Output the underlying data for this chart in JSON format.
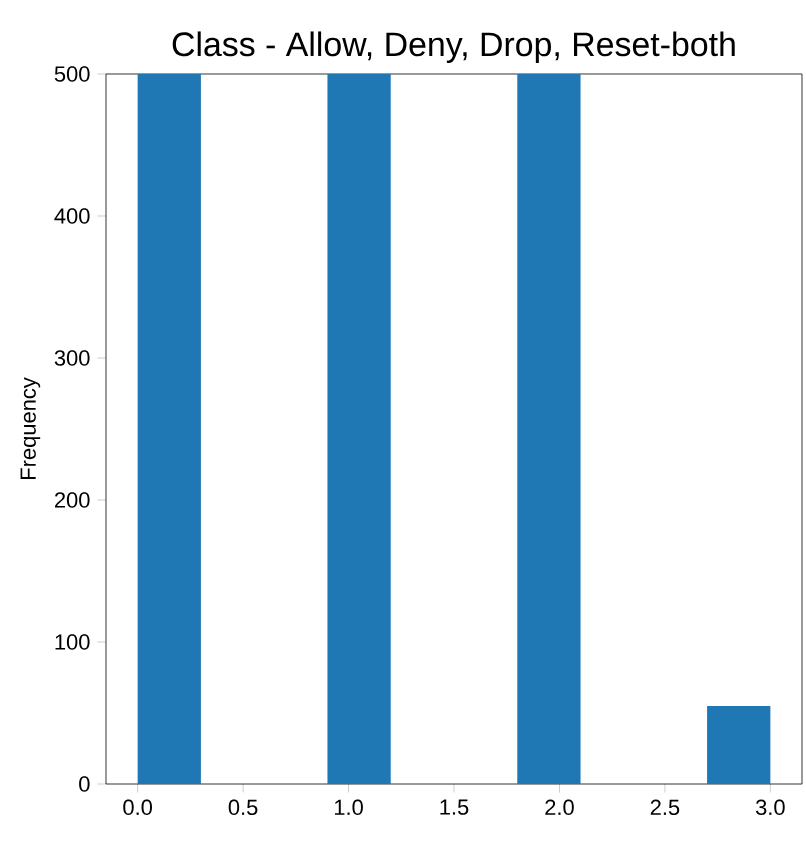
{
  "chart_data": {
    "type": "histogram",
    "title": "Class - Allow, Deny, Drop, Reset-both",
    "ylabel": "Frequency",
    "bins": [
      0,
      0.3,
      0.6,
      0.9,
      1.2,
      1.5,
      1.8,
      2.1,
      2.4,
      2.7,
      3.0
    ],
    "values": [
      500,
      0,
      0,
      500,
      0,
      0,
      500,
      0,
      0,
      55
    ],
    "color": "#1f77b4",
    "xlim": [
      -0.15,
      3.15
    ],
    "ylim": [
      0,
      500
    ],
    "xticks": [
      {
        "value": 0,
        "label": "0.0"
      },
      0.5,
      {
        "value": 1,
        "label": "1.0"
      },
      1.5,
      {
        "value": 2,
        "label": "2.0"
      },
      2.5,
      {
        "value": 3,
        "label": "3.0"
      }
    ],
    "yticks": [
      0,
      100,
      200,
      300,
      400,
      500
    ]
  }
}
